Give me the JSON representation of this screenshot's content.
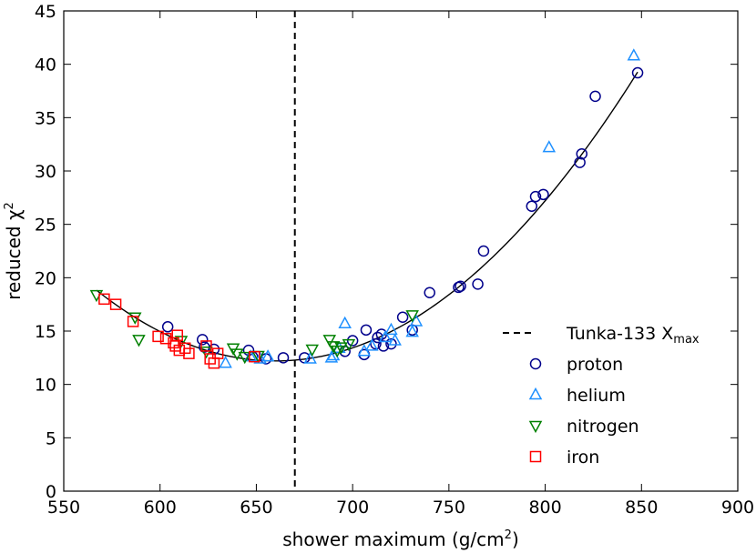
{
  "chart_data": {
    "type": "scatter",
    "title": "",
    "xlabel": "shower maximum (g/cm",
    "xlabel_sup": "2",
    "xlabel_suffix": ")",
    "ylabel": "reduced χ",
    "ylabel_sup": "2",
    "xlim": [
      550,
      900
    ],
    "ylim": [
      0,
      45
    ],
    "xticks": [
      550,
      600,
      650,
      700,
      750,
      800,
      850,
      900
    ],
    "yticks": [
      0,
      5,
      10,
      15,
      20,
      25,
      30,
      35,
      40,
      45
    ],
    "grid": false,
    "legend_position": "center-right",
    "vertical_line": {
      "x": 670,
      "label": "Tunka-133 X",
      "label_sub": "max",
      "style": "dashed",
      "color": "#000000"
    },
    "fit_curve": {
      "type": "parabola",
      "vertex_x": 660,
      "vertex_y": 12.2,
      "curvature": 0.000766,
      "x_range": [
        567,
        848
      ],
      "color": "#000000"
    },
    "series": [
      {
        "name": "proton",
        "marker": "circle",
        "color": "#00008b",
        "points": [
          [
            604,
            15.4
          ],
          [
            622,
            14.2
          ],
          [
            623,
            13.5
          ],
          [
            628,
            13.3
          ],
          [
            646,
            13.2
          ],
          [
            648,
            12.6
          ],
          [
            655,
            12.4
          ],
          [
            664,
            12.5
          ],
          [
            675,
            12.5
          ],
          [
            696,
            13.1
          ],
          [
            700,
            14.1
          ],
          [
            706,
            12.8
          ],
          [
            707,
            15.1
          ],
          [
            712,
            13.8
          ],
          [
            713,
            14.4
          ],
          [
            715,
            14.7
          ],
          [
            716,
            13.6
          ],
          [
            720,
            13.8
          ],
          [
            726,
            16.3
          ],
          [
            731,
            15.1
          ],
          [
            740,
            18.6
          ],
          [
            755,
            19.1
          ],
          [
            756,
            19.2
          ],
          [
            765,
            19.4
          ],
          [
            768,
            22.5
          ],
          [
            793,
            26.7
          ],
          [
            795,
            27.6
          ],
          [
            799,
            27.8
          ],
          [
            818,
            30.8
          ],
          [
            819,
            31.6
          ],
          [
            826,
            37.0
          ],
          [
            848,
            39.2
          ]
        ]
      },
      {
        "name": "helium",
        "marker": "triangle-up",
        "color": "#1e90ff",
        "points": [
          [
            634,
            12.0
          ],
          [
            647,
            12.6
          ],
          [
            652,
            12.4
          ],
          [
            656,
            12.6
          ],
          [
            678,
            12.4
          ],
          [
            689,
            12.5
          ],
          [
            690,
            12.7
          ],
          [
            693,
            13.4
          ],
          [
            696,
            15.7
          ],
          [
            706,
            13.1
          ],
          [
            710,
            13.6
          ],
          [
            717,
            14.4
          ],
          [
            720,
            15.1
          ],
          [
            722,
            14.1
          ],
          [
            731,
            14.9
          ],
          [
            733,
            15.9
          ],
          [
            802,
            32.2
          ],
          [
            846,
            40.8
          ]
        ]
      },
      {
        "name": "nitrogen",
        "marker": "triangle-down",
        "color": "#008000",
        "points": [
          [
            567,
            18.4
          ],
          [
            587,
            16.3
          ],
          [
            589,
            14.2
          ],
          [
            611,
            14.1
          ],
          [
            624,
            13.1
          ],
          [
            638,
            13.4
          ],
          [
            640,
            12.9
          ],
          [
            644,
            12.6
          ],
          [
            651,
            12.7
          ],
          [
            679,
            13.3
          ],
          [
            688,
            14.2
          ],
          [
            690,
            13.6
          ],
          [
            692,
            13.2
          ],
          [
            694,
            13.5
          ],
          [
            698,
            13.8
          ],
          [
            731,
            16.5
          ]
        ]
      },
      {
        "name": "iron",
        "marker": "square",
        "color": "#ff0000",
        "points": [
          [
            571,
            18.0
          ],
          [
            577,
            17.5
          ],
          [
            586,
            15.9
          ],
          [
            599,
            14.5
          ],
          [
            603,
            14.3
          ],
          [
            607,
            13.9
          ],
          [
            608,
            13.6
          ],
          [
            609,
            14.6
          ],
          [
            610,
            13.2
          ],
          [
            613,
            13.4
          ],
          [
            615,
            12.9
          ],
          [
            624,
            13.6
          ],
          [
            626,
            12.4
          ],
          [
            628,
            12.0
          ],
          [
            630,
            12.9
          ],
          [
            649,
            12.6
          ]
        ]
      }
    ]
  }
}
